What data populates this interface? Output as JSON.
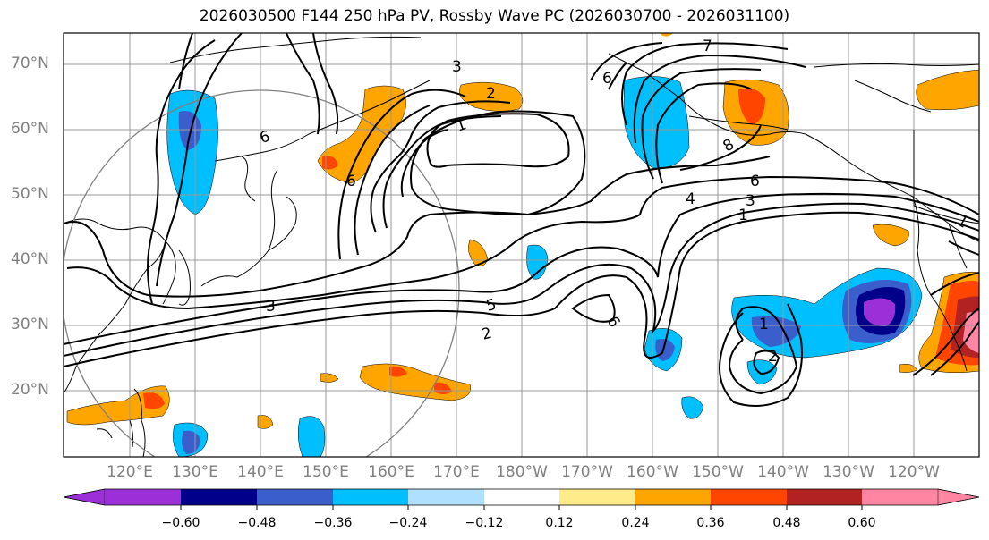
{
  "title": "2026030500 F144 250 hPa PV, Rossby Wave PC (2026030700 - 2026031100)",
  "lat_labels": [
    "70°N",
    "60°N",
    "50°N",
    "40°N",
    "30°N",
    "20°N"
  ],
  "lon_labels": [
    "120°E",
    "130°E",
    "140°E",
    "150°E",
    "160°E",
    "170°E",
    "180°W",
    "170°W",
    "160°W",
    "150°W",
    "140°W",
    "130°W",
    "120°W"
  ],
  "colorbar": {
    "ticks": [
      "−0.60",
      "−0.48",
      "−0.36",
      "−0.24",
      "−0.12",
      "0.12",
      "0.24",
      "0.36",
      "0.48",
      "0.60"
    ],
    "colors": [
      "#9b30d9",
      "#00008b",
      "#3a5fcd",
      "#00bfff",
      "#b0e0ff",
      "#ffffff",
      "#ffeb8a",
      "#ffa500",
      "#ff4500",
      "#b22222",
      "#ff85a2"
    ]
  },
  "contour_labels": [
    "7",
    "1",
    "2",
    "3",
    "6",
    "6",
    "6",
    "8",
    "6",
    "4",
    "3",
    "1",
    "5",
    "2",
    "3",
    "6",
    "1",
    "2",
    "1"
  ],
  "colors": {
    "grid": "#999999",
    "coast": "#000000",
    "contour": "#000000"
  }
}
